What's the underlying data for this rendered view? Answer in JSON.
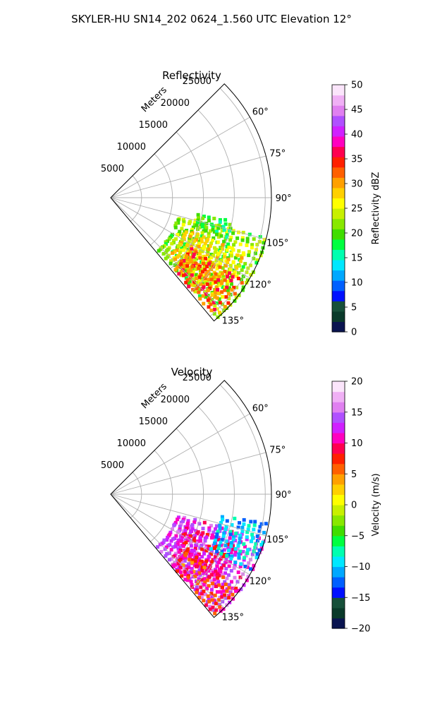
{
  "figure": {
    "suptitle": "SKYLER-HU  SN14_202  0624_1.560 UTC Elevation 12°"
  },
  "chart_data": [
    {
      "type": "polar-sector",
      "title": "Reflectivity",
      "radial_label": "Meters",
      "radial_ticks": [
        5000,
        10000,
        15000,
        20000,
        25000
      ],
      "radial_tick_labels": [
        "5000",
        "10000",
        "15000",
        "20000",
        "25000"
      ],
      "rmax": 26000,
      "theta_min_deg": 45,
      "theta_max_deg": 140,
      "theta_ticks": [
        60,
        75,
        90,
        105,
        120,
        135
      ],
      "theta_tick_labels": [
        "60°",
        "75°",
        "90°",
        "105°",
        "120°",
        "135°"
      ],
      "theta_grid": [
        45,
        60,
        75,
        90,
        105,
        120,
        135
      ],
      "colorbar": {
        "label": "Reflectivity dBZ",
        "min": 0,
        "max": 50,
        "ticks": [
          0,
          5,
          10,
          15,
          20,
          25,
          30,
          35,
          40,
          45,
          50
        ],
        "tick_labels": [
          "0",
          "5",
          "10",
          "15",
          "20",
          "25",
          "30",
          "35",
          "40",
          "45",
          "50"
        ],
        "colors": [
          "#0a1450",
          "#0a3a2a",
          "#17503a",
          "#0010ff",
          "#0060ff",
          "#00a8ff",
          "#00e8ff",
          "#00ffb0",
          "#00ff40",
          "#40dd00",
          "#88e800",
          "#c8f000",
          "#ffff00",
          "#ffd000",
          "#ffa000",
          "#ff6000",
          "#ff2000",
          "#ff0050",
          "#ff00c0",
          "#d020ff",
          "#b050ff",
          "#e080f0",
          "#f0b0f5",
          "#fbe5fb"
        ]
      },
      "echo_regions": [
        {
          "theta": [
            104,
            138
          ],
          "r": [
            11000,
            26000
          ],
          "value": 22
        },
        {
          "theta": [
            112,
            134
          ],
          "r": [
            13000,
            23000
          ],
          "value": 27
        },
        {
          "theta": [
            122,
            139
          ],
          "r": [
            15000,
            25500
          ],
          "value": 33
        },
        {
          "theta": [
            100,
            108
          ],
          "r": [
            14000,
            20000
          ],
          "value": 19
        }
      ]
    },
    {
      "type": "polar-sector",
      "title": "Velocity",
      "radial_label": "Meters",
      "radial_ticks": [
        5000,
        10000,
        15000,
        20000,
        25000
      ],
      "radial_tick_labels": [
        "5000",
        "10000",
        "15000",
        "20000",
        "25000"
      ],
      "rmax": 26000,
      "theta_min_deg": 45,
      "theta_max_deg": 140,
      "theta_ticks": [
        60,
        75,
        90,
        105,
        120,
        135
      ],
      "theta_tick_labels": [
        "60°",
        "75°",
        "90°",
        "105°",
        "120°",
        "135°"
      ],
      "theta_grid": [
        45,
        60,
        75,
        90,
        105,
        120,
        135
      ],
      "colorbar": {
        "label": "Velocity (m/s)",
        "min": -20,
        "max": 20,
        "ticks": [
          -20,
          -15,
          -10,
          -5,
          0,
          5,
          10,
          15,
          20
        ],
        "tick_labels": [
          "−20",
          "−15",
          "−10",
          "−5",
          "0",
          "5",
          "10",
          "15",
          "20"
        ],
        "colors": [
          "#0a1450",
          "#0a3a2a",
          "#17503a",
          "#0010ff",
          "#0060ff",
          "#00a8ff",
          "#00e8ff",
          "#00ffb0",
          "#00ff40",
          "#40dd00",
          "#88e800",
          "#c8f000",
          "#ffff00",
          "#ffd000",
          "#ffa000",
          "#ff6000",
          "#ff2000",
          "#ff0050",
          "#ff00c0",
          "#d020ff",
          "#b050ff",
          "#e080f0",
          "#f0b0f5",
          "#fbe5fb"
        ]
      },
      "echo_regions": [
        {
          "theta": [
            106,
            138
          ],
          "r": [
            11000,
            26000
          ],
          "value": 13
        },
        {
          "theta": [
            112,
            130
          ],
          "r": [
            13000,
            22000
          ],
          "value": 10
        },
        {
          "theta": [
            100,
            118
          ],
          "r": [
            18000,
            25500
          ],
          "value": -10
        },
        {
          "theta": [
            126,
            139
          ],
          "r": [
            15000,
            25000
          ],
          "value": 8
        }
      ]
    }
  ]
}
